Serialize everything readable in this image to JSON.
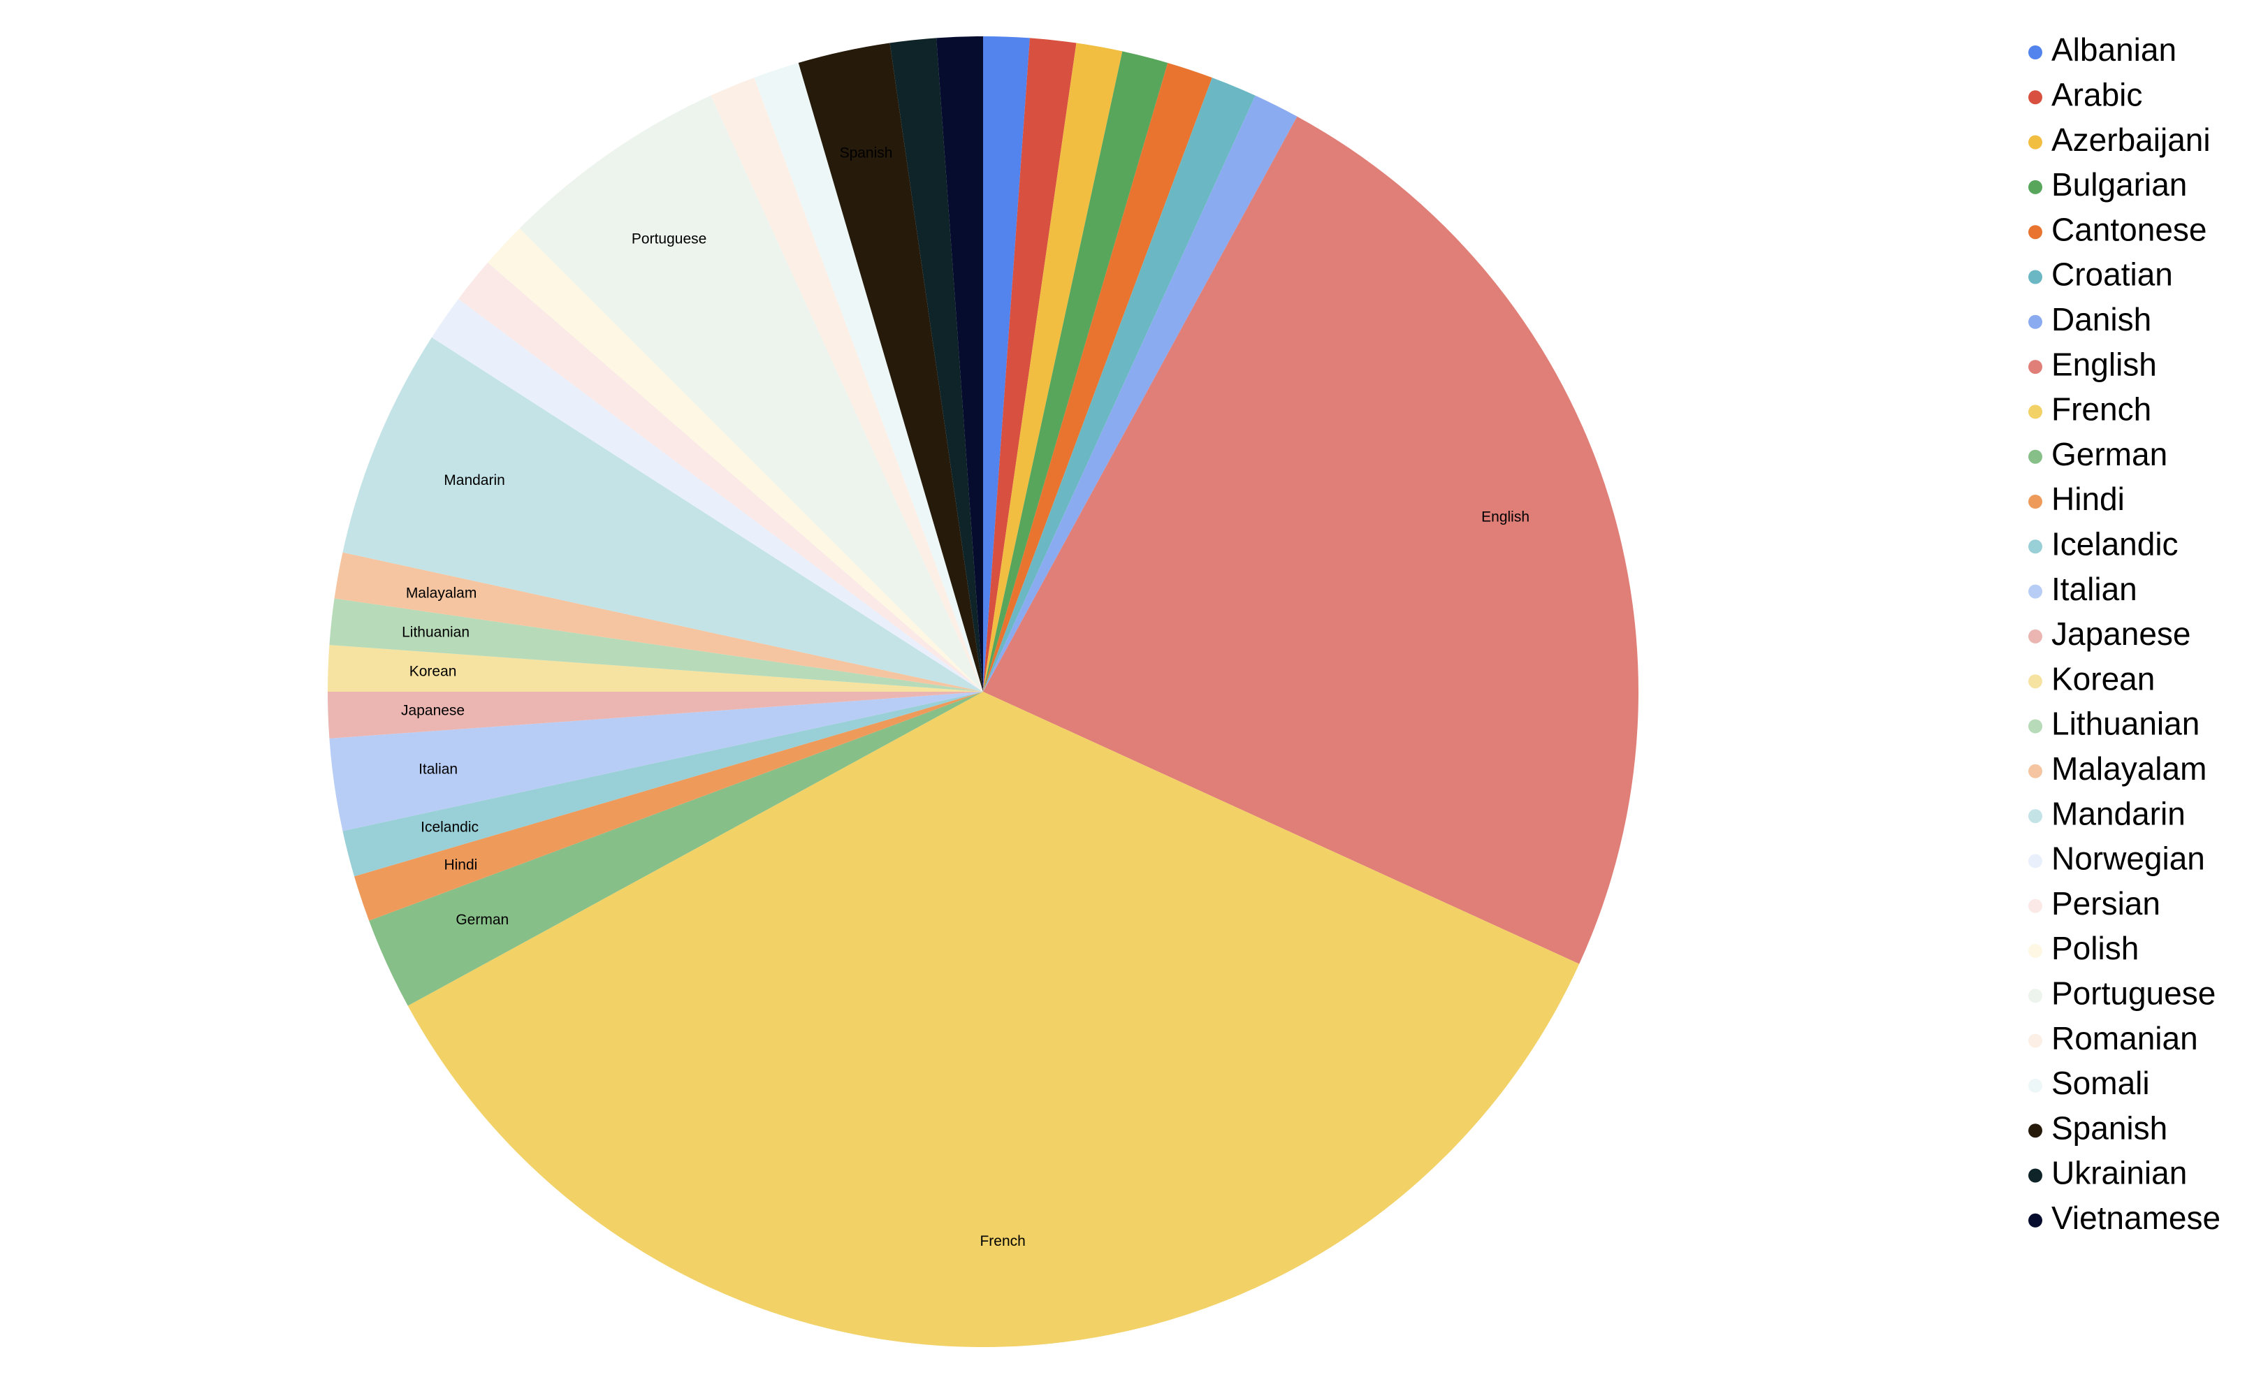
{
  "chart_data": {
    "type": "pie",
    "categories": [
      "Albanian",
      "Arabic",
      "Azerbaijani",
      "Bulgarian",
      "Cantonese",
      "Croatian",
      "Danish",
      "English",
      "French",
      "German",
      "Hindi",
      "Icelandic",
      "Italian",
      "Japanese",
      "Korean",
      "Lithuanian",
      "Malayalam",
      "Mandarin",
      "Norwegian",
      "Persian",
      "Polish",
      "Portuguese",
      "Romanian",
      "Somali",
      "Spanish",
      "Ukrainian",
      "Vietnamese"
    ],
    "values": [
      1,
      1,
      1,
      1,
      1,
      1,
      1,
      21,
      31,
      2,
      1,
      1,
      2,
      1,
      1,
      1,
      1,
      5,
      1,
      1,
      1,
      5,
      1,
      1,
      2,
      1,
      1
    ],
    "colors": [
      "#5383ec",
      "#d85140",
      "#f1be42",
      "#58a55c",
      "#e8742f",
      "#6bb8c4",
      "#8aabf0",
      "#e07f77",
      "#f2d166",
      "#87bf88",
      "#ee9a5b",
      "#99cfd6",
      "#b8cdf6",
      "#ebb6b1",
      "#f7e3a1",
      "#b7dbb8",
      "#f4c5a0",
      "#c3e3e7",
      "#e9f0fc",
      "#fae9e7",
      "#fdf7e3",
      "#ecf4ed",
      "#fcefe6",
      "#eef7f8",
      "#261a0a",
      "#0f2429",
      "#060c2e"
    ],
    "legend": "right"
  }
}
